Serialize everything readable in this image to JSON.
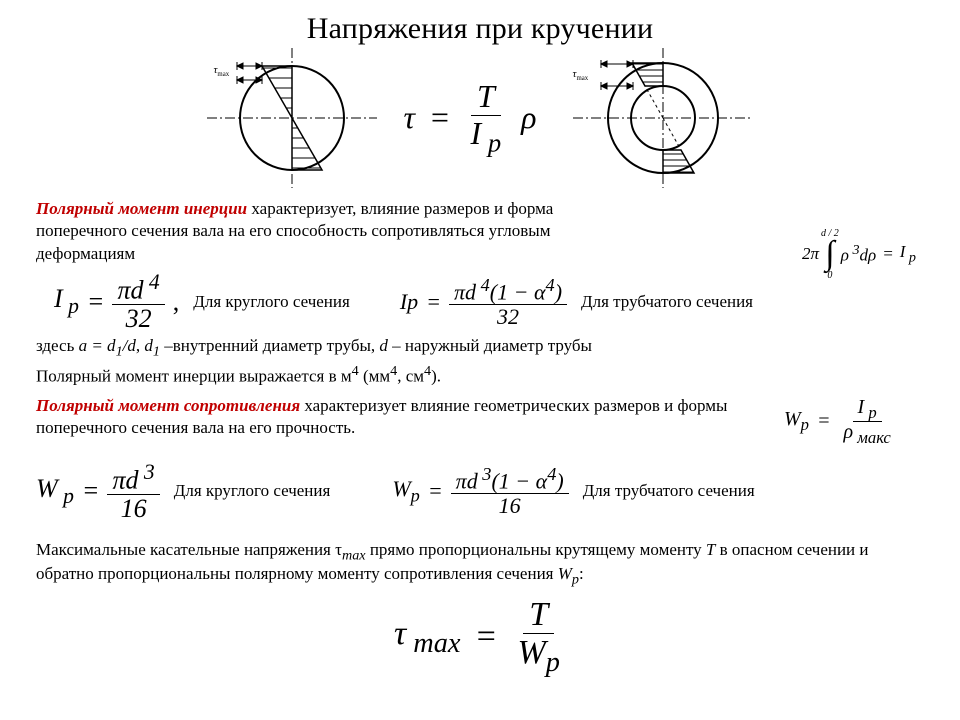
{
  "title": "Напряжения при кручении",
  "tau_max_label_html": "τ<sub>max</sub>",
  "main_formula": {
    "lhs": "τ",
    "eq": "=",
    "num": "T",
    "den_html": "I<sub> p</sub>",
    "rhs": "ρ"
  },
  "polar_moment_inertia": {
    "heading": "Полярный момент инерции",
    "text_cont": " характеризует,  влияние размеров и форма поперечного сечения вала на его способность сопротивляться угловым деформациям"
  },
  "integral": {
    "prefix": "2π",
    "upper": "d / 2",
    "lower": "0",
    "body_html": "ρ<sup> 3</sup>dρ",
    "eq": "=",
    "rhs_html": "I<sub> p</sub>"
  },
  "Ip_circle": {
    "lhs_html": "I<sub> p</sub>",
    "eq": "=",
    "num_html": "πd<sup> 4</sup>",
    "den": "32",
    "comma": ",",
    "label": "Для круглого сечения"
  },
  "Ip_tube": {
    "lhs_html": "Ip",
    "eq": "=",
    "num_html": "πd<sup> 4</sup>(1 − α<sup>4</sup>)",
    "den": "32",
    "label": "Для трубчатого сечения"
  },
  "alpha_note_html": "здесь <i>a = d<sub>1</sub>/d</i>,  <i>d<sub>1</sub></i> –внутренний диаметр трубы,  <i>d</i> – наружный диаметр трубы",
  "units_note_html": "Полярный момент инерции  выражается в м<sup>4</sup>  (мм<sup>4</sup>, см<sup>4</sup>).",
  "polar_modulus": {
    "heading": "Полярный момент сопротивления",
    "text_cont": " характеризует влияние геометрических размеров и формы поперечного сечения вала на его прочность."
  },
  "Wp_def": {
    "lhs_html": "W<sub>p</sub>",
    "eq": "=",
    "num_html": "I<sub> p</sub>",
    "den_html": "ρ<sub> макс</sub>"
  },
  "Wp_circle": {
    "lhs_html": "W<sub> p</sub>",
    "eq": "=",
    "num_html": "πd<sup> 3</sup>",
    "den": "16",
    "label": "Для круглого сечения"
  },
  "Wp_tube": {
    "lhs_html": "W<sub>p</sub>",
    "eq": "=",
    "num_html": "πd<sup> 3</sup>(1 − α<sup>4</sup>)",
    "den": "16",
    "label": "Для трубчатого сечения"
  },
  "conclusion_html": "Максимальные касательные напряжения τ<sub><i>max</i></sub> прямо пропорциональны крутящему моменту <i>T</i> в опасном сечении и обратно пропорциональны полярному моменту сопротивления сечения <i>W<sub>p</sub></i>:",
  "tau_max_formula": {
    "lhs_html": "τ<sub> max</sub>",
    "eq": "=",
    "num": "T",
    "den_html": "W<sub>p</sub>"
  },
  "colors": {
    "text": "#000000",
    "emphasis": "#c00000",
    "background": "#ffffff"
  }
}
